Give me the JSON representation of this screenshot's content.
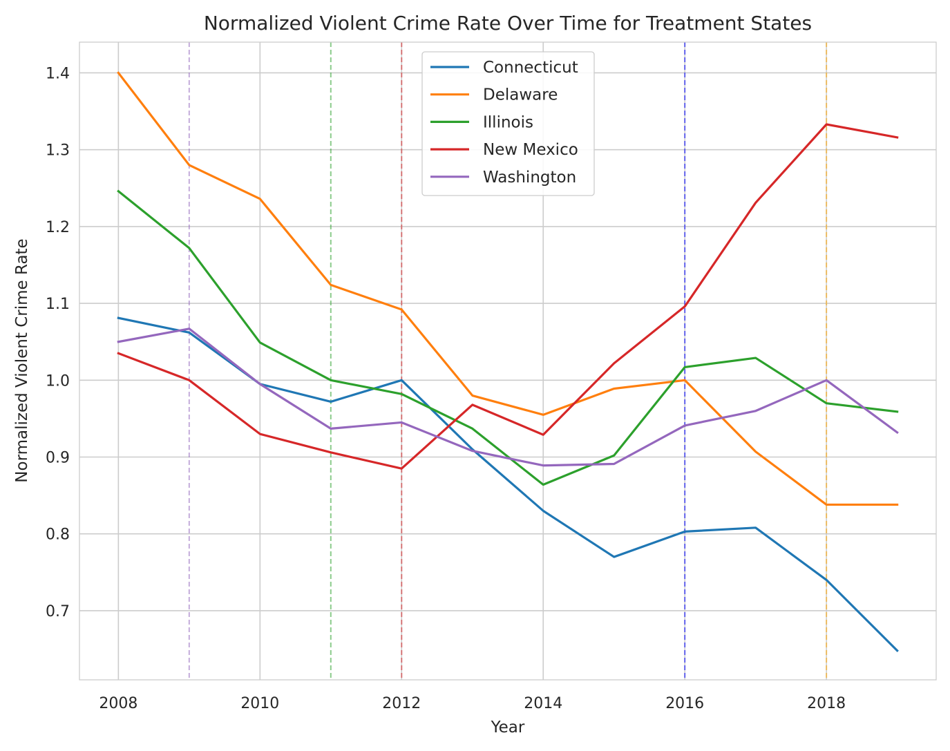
{
  "chart_data": {
    "type": "line",
    "title": "Normalized Violent Crime Rate Over Time for Treatment States",
    "xlabel": "Year",
    "ylabel": "Normalized Violent Crime Rate",
    "x": [
      2008,
      2009,
      2010,
      2011,
      2012,
      2013,
      2014,
      2015,
      2016,
      2017,
      2018,
      2019
    ],
    "xlim": [
      2007.45,
      2019.55
    ],
    "ylim": [
      0.61,
      1.44
    ],
    "xticks": [
      2008,
      2010,
      2012,
      2014,
      2016,
      2018
    ],
    "yticks": [
      0.7,
      0.8,
      0.9,
      1.0,
      1.1,
      1.2,
      1.3,
      1.4
    ],
    "xtick_labels": [
      "2008",
      "2010",
      "2012",
      "2014",
      "2016",
      "2018"
    ],
    "ytick_labels": [
      "0.7",
      "0.8",
      "0.9",
      "1.0",
      "1.1",
      "1.2",
      "1.3",
      "1.4"
    ],
    "grid": true,
    "legend_position": "top-center",
    "series": [
      {
        "name": "Connecticut",
        "color": "#1f77b4",
        "values": [
          1.081,
          1.062,
          0.995,
          0.972,
          1.0,
          0.91,
          0.83,
          0.77,
          0.803,
          0.808,
          0.74,
          0.648
        ]
      },
      {
        "name": "Delaware",
        "color": "#ff7f0e",
        "values": [
          1.4,
          1.28,
          1.236,
          1.124,
          1.092,
          0.98,
          0.955,
          0.989,
          1.0,
          0.907,
          0.838,
          0.838
        ]
      },
      {
        "name": "Illinois",
        "color": "#2ca02c",
        "values": [
          1.246,
          1.172,
          1.049,
          1.0,
          0.982,
          0.937,
          0.864,
          0.902,
          1.017,
          1.029,
          0.97,
          0.959
        ]
      },
      {
        "name": "New Mexico",
        "color": "#d62728",
        "values": [
          1.035,
          1.0,
          0.93,
          0.906,
          0.885,
          0.968,
          0.929,
          1.022,
          1.096,
          1.231,
          1.333,
          1.316
        ]
      },
      {
        "name": "Washington",
        "color": "#9467bd",
        "values": [
          1.05,
          1.067,
          0.995,
          0.937,
          0.945,
          0.908,
          0.889,
          0.891,
          0.941,
          0.96,
          1.0,
          0.932
        ]
      }
    ],
    "vertical_lines": [
      {
        "x": 2009,
        "color": "#9467bd"
      },
      {
        "x": 2011,
        "color": "#2ca02c"
      },
      {
        "x": 2012,
        "color": "#d62728"
      },
      {
        "x": 2016,
        "color": "#0000ff"
      },
      {
        "x": 2018,
        "color": "#ffa500"
      }
    ]
  }
}
